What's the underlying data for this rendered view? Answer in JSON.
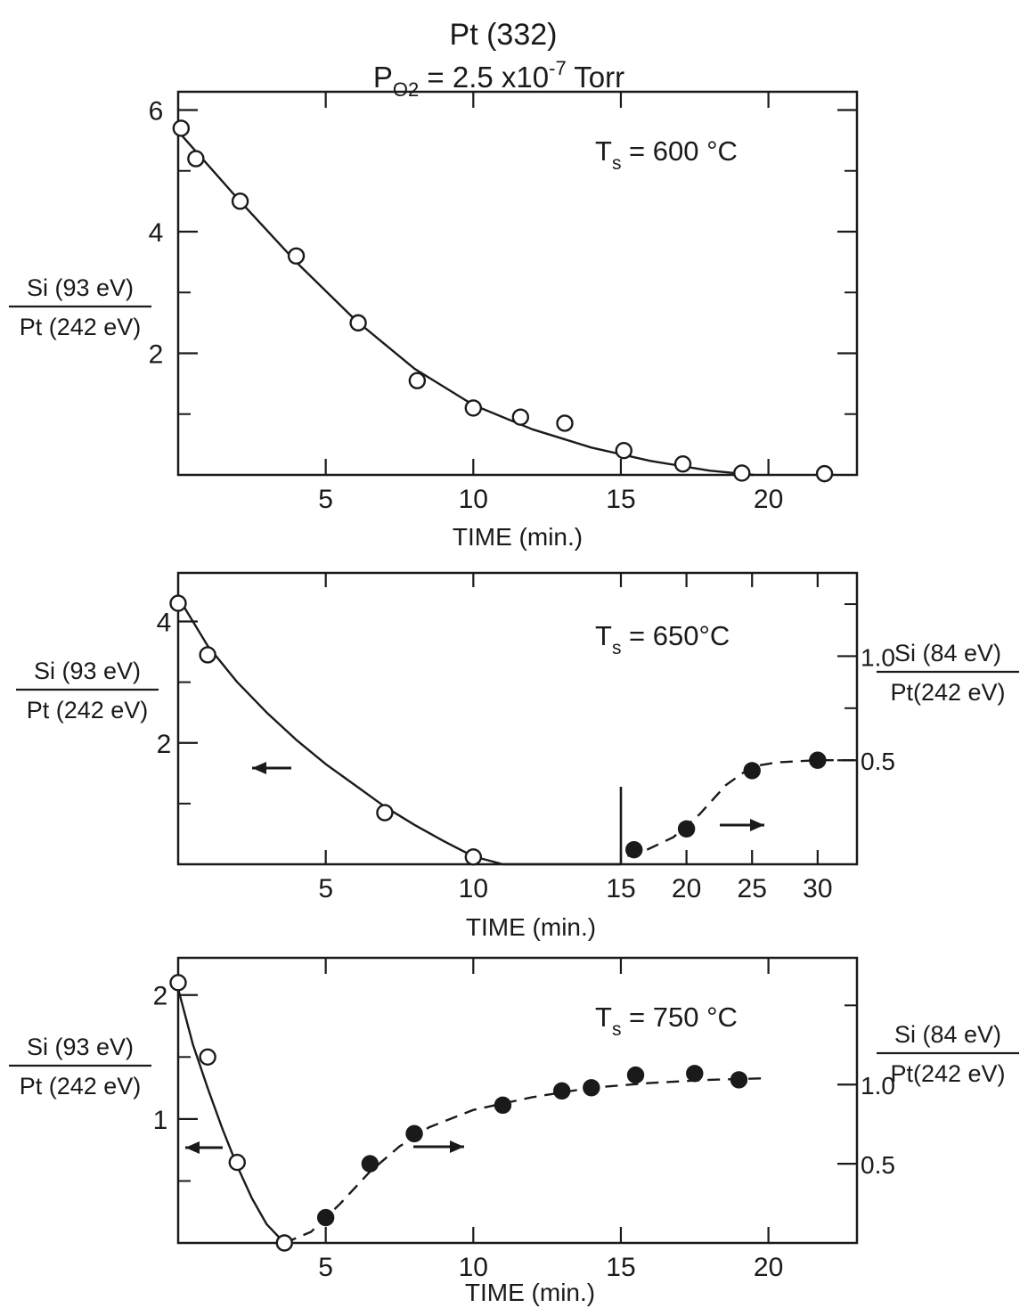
{
  "figure": {
    "title_line1": "Pt (332)",
    "title_line2_main": "P",
    "title_line2_sub": "O2",
    "title_line2_rest": " = 2.5 x10",
    "title_line2_sup": "-7",
    "title_line2_unit": " Torr"
  },
  "chart_data": [
    {
      "type": "scatter",
      "panel": "top",
      "temperature_label": {
        "main": "T",
        "sub": "s",
        "rest": " = 600 °C"
      },
      "xlabel": "TIME (min.)",
      "ylabel_numerator": "Si (93 eV)",
      "ylabel_denominator": "Pt (242 eV)",
      "xlim": [
        0,
        23
      ],
      "ylim": [
        0,
        6.3
      ],
      "x_ticks": [
        5,
        10,
        15,
        20
      ],
      "x_tick_labels": [
        "5",
        "10",
        "15",
        "20"
      ],
      "y_ticks": [
        2,
        4,
        6
      ],
      "y_tick_labels": [
        "2",
        "4",
        "6"
      ],
      "series": [
        {
          "marker": "open-circle",
          "x": [
            0.1,
            0.6,
            2.1,
            4.0,
            6.1,
            8.1,
            10.0,
            11.6,
            13.1,
            15.1,
            17.1,
            19.1,
            21.9
          ],
          "y": [
            5.7,
            5.2,
            4.5,
            3.6,
            2.5,
            1.55,
            1.1,
            0.95,
            0.85,
            0.4,
            0.18,
            0.03,
            0.02
          ]
        }
      ],
      "fit": {
        "style": "solid",
        "x": [
          0,
          2,
          4,
          6,
          8,
          10,
          12,
          14,
          16,
          18,
          19.5
        ],
        "y": [
          5.65,
          4.55,
          3.5,
          2.55,
          1.75,
          1.15,
          0.75,
          0.45,
          0.23,
          0.07,
          0
        ]
      }
    },
    {
      "type": "scatter",
      "panel": "middle",
      "temperature_label": {
        "main": "T",
        "sub": "s",
        "rest": " = 650°C"
      },
      "xlabel": "TIME (min.)",
      "ylabel_numerator": "Si (93 eV)",
      "ylabel_denominator": "Pt (242 eV)",
      "y2label_numerator": "Si (84 eV)",
      "y2label_denominator": "Pt(242 eV)",
      "x_tick_labels": [
        "5",
        "10",
        "15",
        "20",
        "25",
        "30"
      ],
      "y_ticks": [
        2,
        4
      ],
      "y_tick_labels": [
        "2",
        "4"
      ],
      "y2_ticks": [
        0.5,
        1.0
      ],
      "y2_tick_labels": [
        "0.5",
        "1.0"
      ],
      "ylim": [
        0,
        4.8
      ],
      "y2lim": [
        0,
        1.4
      ],
      "left_axis_xlim": [
        0,
        15
      ],
      "right_axis_xlim": [
        15,
        33
      ],
      "series": [
        {
          "marker": "open-circle",
          "axis": "left",
          "x": [
            0.0,
            1.0,
            7.0,
            10.0
          ],
          "y": [
            4.3,
            3.45,
            0.85,
            0.12
          ]
        },
        {
          "marker": "filled-circle",
          "axis": "right",
          "x": [
            16.0,
            20.0,
            25.0,
            30.0
          ],
          "y": [
            0.07,
            0.17,
            0.45,
            0.5
          ]
        }
      ],
      "fit_left": {
        "style": "solid",
        "x": [
          0,
          1,
          2,
          3,
          4,
          5,
          6,
          7,
          8,
          9,
          10,
          11,
          12,
          15
        ],
        "y": [
          4.4,
          3.6,
          3.0,
          2.5,
          2.05,
          1.65,
          1.3,
          0.95,
          0.65,
          0.38,
          0.13,
          0.0,
          0.0,
          0.0
        ]
      },
      "fit_right": {
        "style": "dashed",
        "x": [
          15.5,
          17,
          19,
          21,
          23,
          25,
          27,
          30,
          33
        ],
        "y": [
          0.04,
          0.07,
          0.13,
          0.24,
          0.38,
          0.47,
          0.49,
          0.5,
          0.5
        ]
      },
      "divider_x": 15
    },
    {
      "type": "scatter",
      "panel": "bottom",
      "temperature_label": {
        "main": "T",
        "sub": "s",
        "rest": " = 750 °C"
      },
      "xlabel": "TIME (min.)",
      "ylabel_numerator": "Si (93 eV)",
      "ylabel_denominator": "Pt (242 eV)",
      "y2label_numerator": "Si (84 eV)",
      "y2label_denominator": "Pt(242 eV)",
      "xlim": [
        0,
        23
      ],
      "ylim": [
        0,
        2.3
      ],
      "y2lim": [
        0,
        1.8
      ],
      "x_ticks": [
        5,
        10,
        15,
        20
      ],
      "x_tick_labels": [
        "5",
        "10",
        "15",
        "20"
      ],
      "y_ticks": [
        1,
        2
      ],
      "y_tick_labels": [
        "1",
        "2"
      ],
      "y2_ticks": [
        0.5,
        1.0
      ],
      "y2_tick_labels": [
        "0.5",
        "1.0"
      ],
      "series": [
        {
          "marker": "open-circle",
          "axis": "left",
          "x": [
            0.0,
            1.0,
            2.0,
            3.6
          ],
          "y": [
            2.1,
            1.5,
            0.65,
            0.0
          ]
        },
        {
          "marker": "filled-circle",
          "axis": "right",
          "x": [
            5.0,
            6.5,
            8.0,
            11.0,
            13.0,
            14.0,
            15.5,
            17.5,
            19.0
          ],
          "y": [
            0.16,
            0.5,
            0.69,
            0.87,
            0.96,
            0.98,
            1.06,
            1.07,
            1.03
          ]
        }
      ],
      "fit_left": {
        "style": "solid",
        "x": [
          0,
          0.5,
          1,
          1.5,
          2,
          2.5,
          3,
          3.6
        ],
        "y": [
          2.05,
          1.6,
          1.25,
          0.92,
          0.62,
          0.36,
          0.15,
          0.0
        ]
      },
      "fit_right": {
        "style": "dashed",
        "x": [
          3.6,
          4.5,
          5.5,
          6.5,
          7.5,
          8.5,
          10,
          12,
          14,
          16,
          18,
          20
        ],
        "y": [
          0.0,
          0.07,
          0.25,
          0.45,
          0.61,
          0.73,
          0.84,
          0.92,
          0.98,
          1.01,
          1.03,
          1.04
        ]
      }
    }
  ]
}
